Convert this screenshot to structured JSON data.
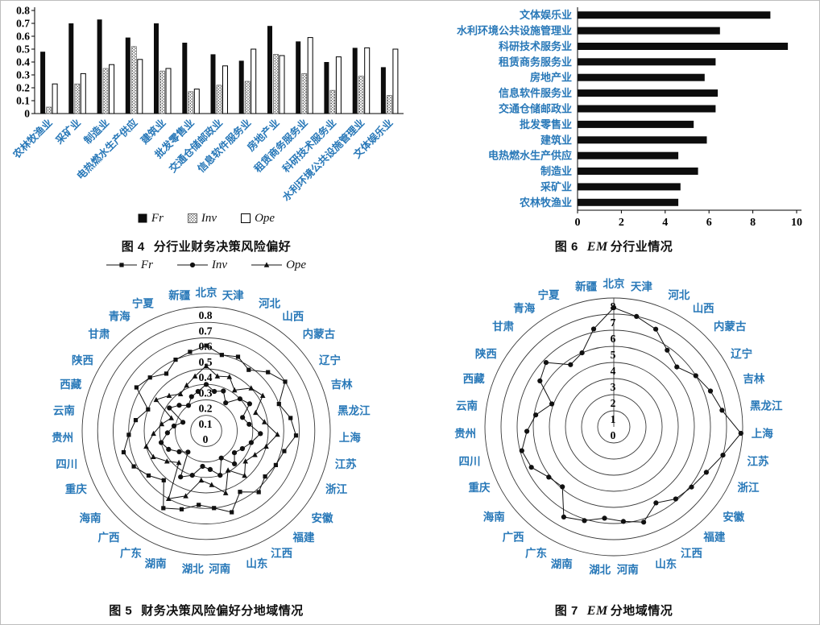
{
  "colors": {
    "category_label": "#2878b8",
    "bar_fill": "#0d0d0d",
    "line": "#111111"
  },
  "captions": {
    "fig4": {
      "num": "图 4",
      "italic": "",
      "title": "分行业财务决策风险偏好"
    },
    "fig6": {
      "num": "图 6",
      "italic": "EM",
      "title": "分行业情况"
    },
    "fig5": {
      "num": "图 5",
      "italic": "",
      "title": "财务决策风险偏好分地域情况"
    },
    "fig7": {
      "num": "图 7",
      "italic": "EM",
      "title": "分地域情况"
    }
  },
  "chart_data": [
    {
      "id": "fig4",
      "type": "bar",
      "orientation": "vertical",
      "categories": [
        "农林牧渔业",
        "采矿业",
        "制造业",
        "电热燃水生产供应",
        "建筑业",
        "批发零售业",
        "交通仓储邮政业",
        "信息软件服务业",
        "房地产业",
        "租赁商务服务业",
        "科研技术服务业",
        "水利环境公共设施管理业",
        "文体娱乐业"
      ],
      "series": [
        {
          "name": "Fr",
          "style": "solid-black",
          "values": [
            0.48,
            0.7,
            0.73,
            0.59,
            0.7,
            0.55,
            0.46,
            0.41,
            0.68,
            0.56,
            0.4,
            0.51,
            0.36
          ]
        },
        {
          "name": "Inv",
          "style": "dotted-pattern",
          "values": [
            0.05,
            0.23,
            0.35,
            0.52,
            0.33,
            0.17,
            0.22,
            0.25,
            0.46,
            0.31,
            0.18,
            0.29,
            0.14
          ]
        },
        {
          "name": "Ope",
          "style": "white-outline",
          "values": [
            0.23,
            0.31,
            0.38,
            0.42,
            0.35,
            0.19,
            0.37,
            0.5,
            0.45,
            0.59,
            0.44,
            0.51,
            0.5
          ]
        }
      ],
      "ylim": [
        0,
        0.8
      ],
      "ytick_step": 0.1,
      "legend_position": "bottom",
      "grid": false
    },
    {
      "id": "fig6",
      "type": "bar",
      "orientation": "horizontal",
      "categories": [
        "文体娱乐业",
        "水利环境公共设施管理业",
        "科研技术服务业",
        "租赁商务服务业",
        "房地产业",
        "信息软件服务业",
        "交通仓储邮政业",
        "批发零售业",
        "建筑业",
        "电热燃水生产供应",
        "制造业",
        "采矿业",
        "农林牧渔业"
      ],
      "values": [
        8.8,
        6.5,
        9.6,
        6.3,
        5.8,
        6.4,
        6.3,
        5.3,
        5.9,
        4.6,
        5.5,
        4.7,
        4.6
      ],
      "xlim": [
        0,
        10
      ],
      "xticks": [
        0,
        2,
        4,
        6,
        8,
        10
      ],
      "grid": false
    },
    {
      "id": "fig5",
      "type": "radar",
      "categories": [
        "北京",
        "天津",
        "河北",
        "山西",
        "内蒙古",
        "辽宁",
        "吉林",
        "黑龙江",
        "上海",
        "江苏",
        "浙江",
        "安徽",
        "福建",
        "江西",
        "山东",
        "河南",
        "湖北",
        "湖南",
        "广东",
        "广西",
        "海南",
        "重庆",
        "四川",
        "贵州",
        "云南",
        "西藏",
        "陕西",
        "甘肃",
        "青海",
        "宁夏",
        "新疆"
      ],
      "series": [
        {
          "name": "Fr",
          "marker": "square",
          "values": [
            0.55,
            0.5,
            0.52,
            0.48,
            0.55,
            0.6,
            0.5,
            0.55,
            0.58,
            0.52,
            0.5,
            0.48,
            0.52,
            0.45,
            0.55,
            0.5,
            0.48,
            0.53,
            0.57,
            0.42,
            0.47,
            0.52,
            0.55,
            0.5,
            0.46,
            0.4,
            0.53,
            0.5,
            0.45,
            0.5,
            0.52
          ]
        },
        {
          "name": "Inv",
          "marker": "circle",
          "values": [
            0.3,
            0.26,
            0.28,
            0.22,
            0.3,
            0.33,
            0.25,
            0.28,
            0.35,
            0.3,
            0.26,
            0.23,
            0.28,
            0.2,
            0.3,
            0.25,
            0.23,
            0.3,
            0.34,
            0.18,
            0.22,
            0.27,
            0.3,
            0.25,
            0.21,
            0.16,
            0.28,
            0.24,
            0.2,
            0.24,
            0.26
          ]
        },
        {
          "name": "Ope",
          "marker": "triangle",
          "values": [
            0.42,
            0.36,
            0.38,
            0.32,
            0.4,
            0.43,
            0.34,
            0.38,
            0.46,
            0.4,
            0.35,
            0.32,
            0.38,
            0.29,
            0.42,
            0.35,
            0.32,
            0.44,
            0.5,
            0.27,
            0.32,
            0.38,
            0.4,
            0.34,
            0.29,
            0.24,
            0.38,
            0.33,
            0.29,
            0.32,
            0.36
          ]
        }
      ],
      "rlim": [
        0,
        0.8
      ],
      "rtick_step": 0.1,
      "axis_line": false,
      "legend_position": "top"
    },
    {
      "id": "fig7",
      "type": "radar",
      "categories": [
        "北京",
        "天津",
        "河北",
        "山西",
        "内蒙古",
        "辽宁",
        "吉林",
        "黑龙江",
        "上海",
        "江苏",
        "浙江",
        "安徽",
        "福建",
        "江西",
        "山东",
        "河南",
        "湖北",
        "湖南",
        "广东",
        "广西",
        "海南",
        "重庆",
        "四川",
        "贵州",
        "云南",
        "西藏",
        "陕西",
        "甘肃",
        "青海",
        "宁夏",
        "新疆"
      ],
      "series": [
        {
          "name": "EM",
          "marker": "circle",
          "values": [
            7.4,
            7.0,
            6.6,
            5.8,
            5.4,
            6.0,
            6.4,
            6.8,
            7.9,
            7.0,
            6.4,
            6.1,
            5.9,
            5.4,
            6.2,
            5.9,
            5.7,
            6.1,
            6.4,
            4.9,
            5.1,
            5.7,
            5.9,
            5.4,
            4.9,
            4.1,
            5.4,
            5.8,
            4.7,
            5.0,
            6.2
          ]
        }
      ],
      "rlim": [
        0,
        8
      ],
      "rtick_step": 1,
      "axis_line": true,
      "legend_position": "none"
    }
  ]
}
